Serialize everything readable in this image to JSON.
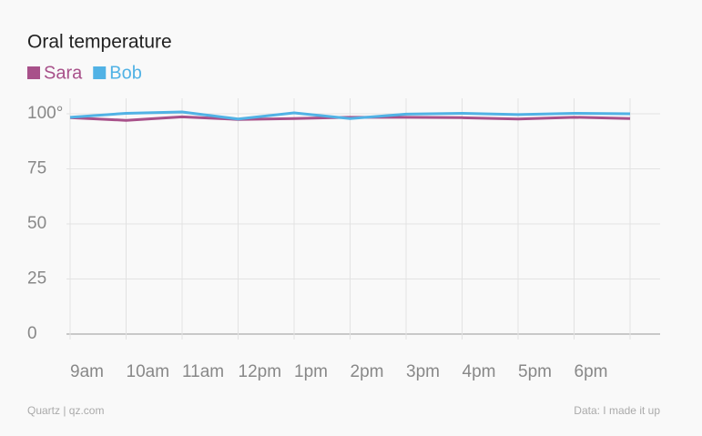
{
  "chart_data": {
    "type": "line",
    "title": "Oral temperature",
    "categories": [
      "9am",
      "10am",
      "11am",
      "12pm",
      "1pm",
      "2pm",
      "3pm",
      "4pm",
      "5pm",
      "6pm",
      null
    ],
    "series": [
      {
        "name": "Sara",
        "color": "#a8518a",
        "values": [
          98.2,
          97,
          98.6,
          97.4,
          97.8,
          98.4,
          98.4,
          98.2,
          97.6,
          98.4,
          97.8
        ]
      },
      {
        "name": "Bob",
        "color": "#51b2e5",
        "values": [
          98.4,
          100.2,
          100.8,
          97.6,
          100.4,
          97.8,
          99.8,
          100.2,
          99.6,
          100.2,
          100
        ]
      }
    ],
    "ylim": [
      0,
      107
    ],
    "yticks": [
      0,
      25,
      50,
      75,
      {
        "value": 100,
        "label": "100°"
      }
    ],
    "grid": true,
    "source": "Quartz | qz.com",
    "note": "Data: I made it up"
  }
}
